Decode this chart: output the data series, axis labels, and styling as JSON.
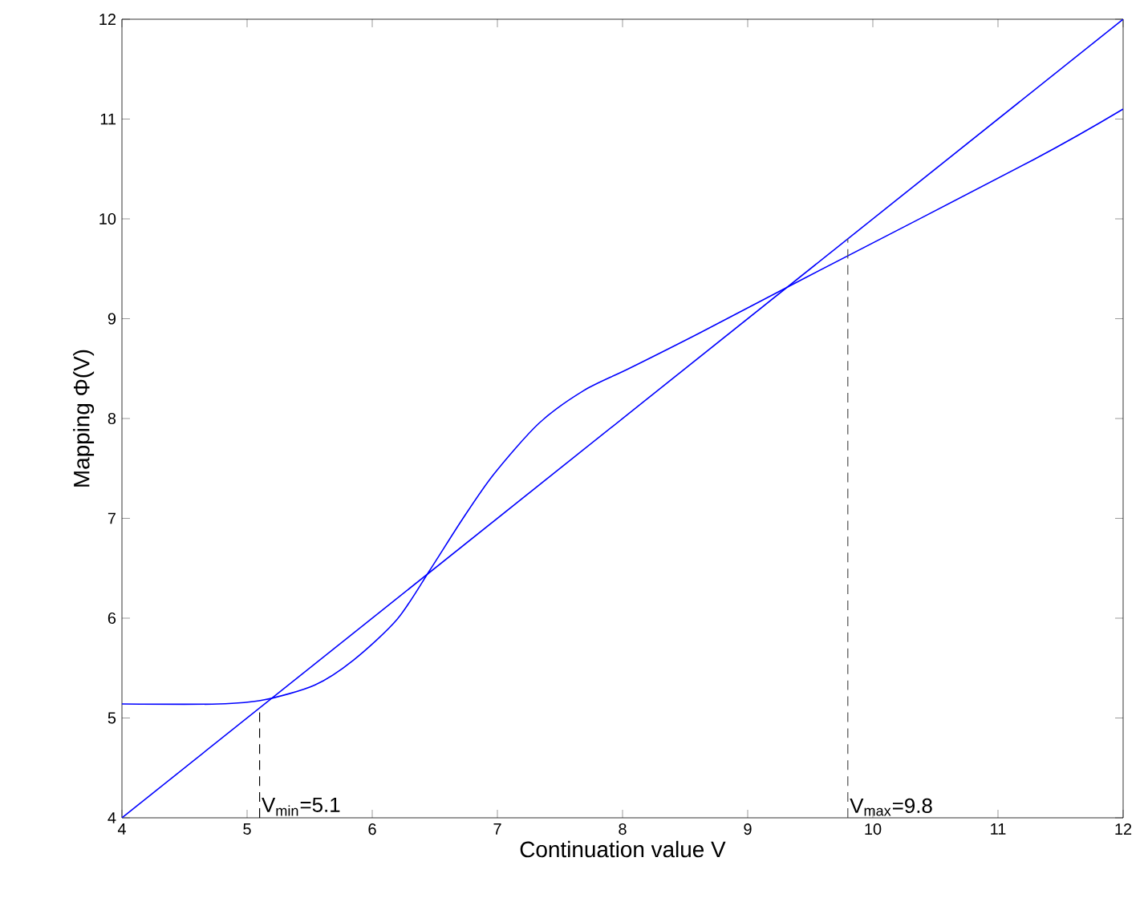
{
  "chart_data": {
    "type": "line",
    "xlabel": "Continuation value V",
    "ylabel": "Mapping Φ(V)",
    "xlim": [
      4,
      12
    ],
    "ylim": [
      4,
      12
    ],
    "xticks": [
      4,
      5,
      6,
      7,
      8,
      9,
      10,
      11,
      12
    ],
    "yticks": [
      4,
      5,
      6,
      7,
      8,
      9,
      10,
      11,
      12
    ],
    "grid": false,
    "marker": "none",
    "line_style": "solid",
    "series": [
      {
        "color": "#0000ff",
        "x": [
          4,
          4.77,
          5.13,
          5.54,
          5.85,
          6.2,
          6.46,
          6.72,
          6.97,
          7.33,
          7.69,
          8.05,
          8.62,
          9.46,
          11.28,
          12
        ],
        "values": [
          5.14,
          5.14,
          5.18,
          5.33,
          5.58,
          5.99,
          6.48,
          6.99,
          7.44,
          7.95,
          8.28,
          8.5,
          8.86,
          9.41,
          10.59,
          11.1
        ]
      },
      {
        "color": "#0000ff",
        "x": [
          4,
          12
        ],
        "values": [
          4,
          12
        ]
      }
    ],
    "ref_lines": [
      {
        "axis": "x",
        "value": 5.1,
        "label": "V$_{min}$=5.1",
        "color": "#000000",
        "line_style": "dashed"
      },
      {
        "axis": "x",
        "value": 9.8,
        "label": "V$_{max}$=9.8",
        "color": "#505050",
        "line_style": "dashed"
      }
    ]
  }
}
